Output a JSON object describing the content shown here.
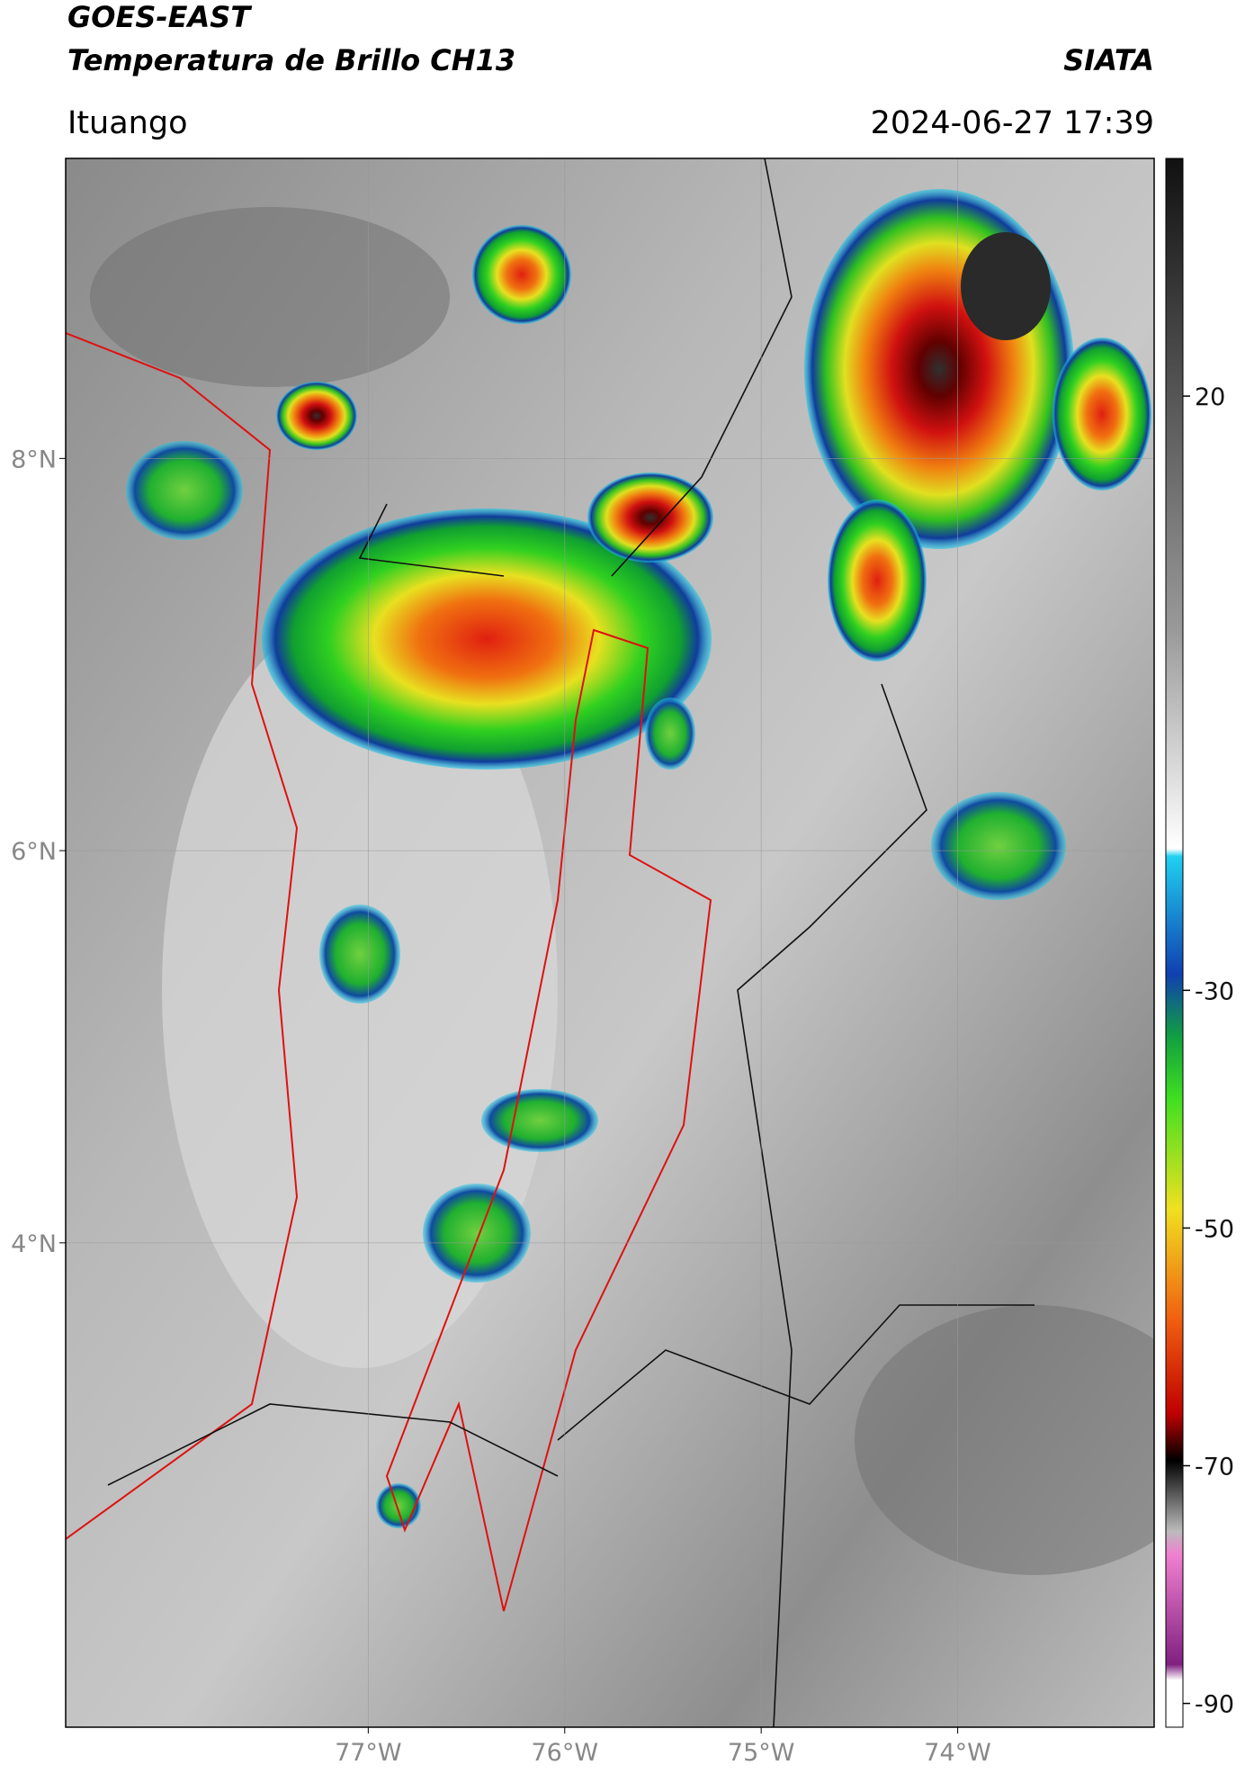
{
  "header": {
    "title": "GOES-EAST",
    "subtitle": "Temperatura de Brillo CH13",
    "agency": "SIATA",
    "location": "Ituango",
    "datetime": "2024-06-27 17:39"
  },
  "map": {
    "xlim": [
      -78.54,
      -73.0
    ],
    "ylim": [
      1.53,
      9.53
    ],
    "xticks": [
      {
        "value": -77,
        "label": "77°W"
      },
      {
        "value": -76,
        "label": "76°W"
      },
      {
        "value": -75,
        "label": "75°W"
      },
      {
        "value": -74,
        "label": "74°W"
      }
    ],
    "yticks": [
      {
        "value": 8,
        "label": "8°N"
      },
      {
        "value": 6,
        "label": "6°N"
      },
      {
        "value": 4,
        "label": "4°N"
      }
    ],
    "grid": true
  },
  "colorbar": {
    "lim": [
      -92,
      40
    ],
    "ticks": [
      20,
      -30,
      -50,
      -70,
      -90
    ]
  }
}
